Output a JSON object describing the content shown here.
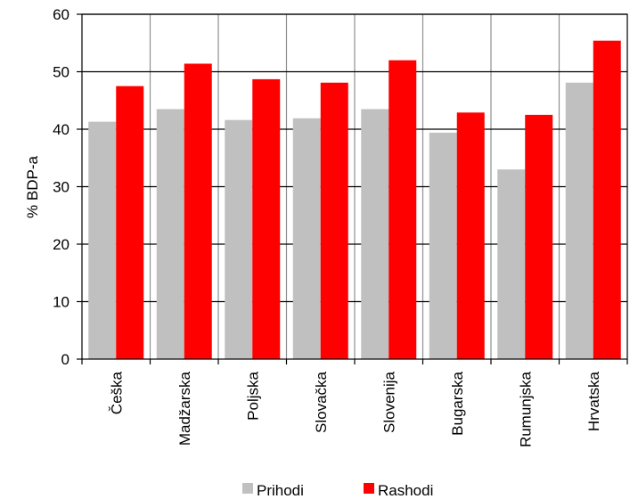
{
  "chart_data": {
    "type": "bar",
    "categories": [
      "Češka",
      "Madžarska",
      "Poljska",
      "Slovačka",
      "Slovenija",
      "Bugarska",
      "Rumunjska",
      "Hrvatska"
    ],
    "series": [
      {
        "name": "Prihodi",
        "values": [
          41.3,
          43.5,
          41.6,
          41.9,
          43.5,
          39.4,
          33.0,
          48.1
        ],
        "color": "#c0c0c0"
      },
      {
        "name": "Rashodi",
        "values": [
          47.5,
          51.4,
          48.7,
          48.1,
          52.0,
          42.9,
          42.5,
          55.4
        ],
        "color": "#ff0000"
      }
    ],
    "title": "",
    "xlabel": "",
    "ylabel": "% BDP-a",
    "ylim": [
      0,
      60
    ],
    "yticks": [
      0,
      10,
      20,
      30,
      40,
      50,
      60
    ],
    "grid": "horizontal and vertical",
    "legend": "bottom"
  }
}
